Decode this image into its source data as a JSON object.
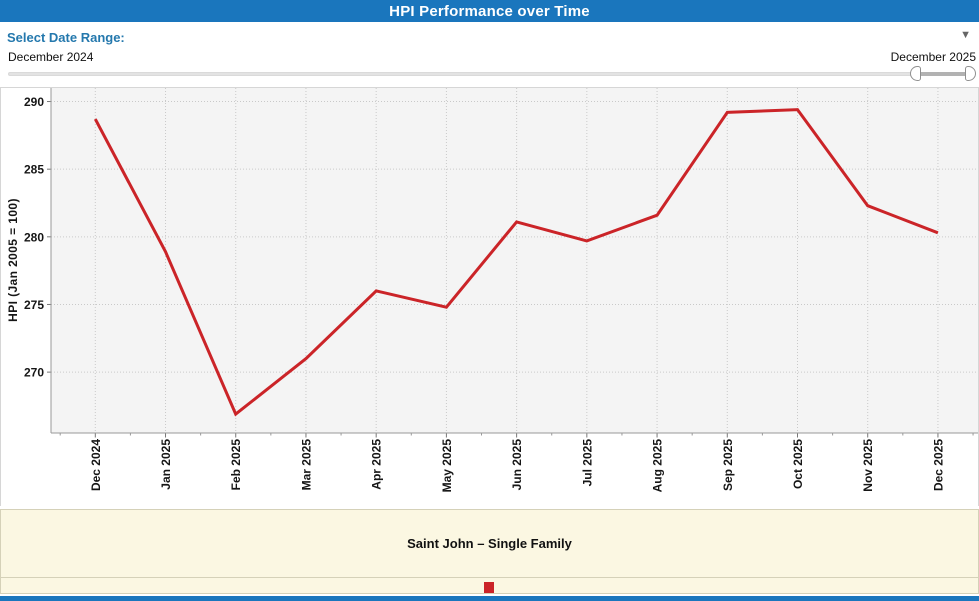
{
  "header": {
    "title": "HPI Performance over Time"
  },
  "controls": {
    "label": "Select Date Range:",
    "range_start": "December 2024",
    "range_end": "December 2025"
  },
  "icons": {
    "dropdown": "▼"
  },
  "chart_data": {
    "type": "line",
    "title": "",
    "xlabel": "",
    "ylabel": "HPI (Jan 2005 = 100)",
    "categories": [
      "Dec 2024",
      "Jan 2025",
      "Feb 2025",
      "Mar 2025",
      "Apr 2025",
      "May 2025",
      "Jun 2025",
      "Jul 2025",
      "Aug 2025",
      "Sep 2025",
      "Oct 2025",
      "Nov 2025",
      "Dec 2025"
    ],
    "series": [
      {
        "name": "Saint John – Single Family",
        "color": "#cb2428",
        "values": [
          288.7,
          278.9,
          266.9,
          271.0,
          276.0,
          274.8,
          281.1,
          279.7,
          281.6,
          289.2,
          289.4,
          282.3,
          280.3
        ]
      }
    ],
    "yticks": [
      270,
      275,
      280,
      285,
      290
    ],
    "ylim": [
      265.5,
      291
    ],
    "grid": true,
    "legend_position": "bottom"
  },
  "colors": {
    "header_bg": "#1a76bd",
    "accent_blue": "#2478ad",
    "line_red": "#cb2428",
    "plot_bg": "#f4f4f4",
    "grid": "#c9c9c9",
    "axis": "#999999",
    "cream_bg": "#fbf7e2"
  }
}
